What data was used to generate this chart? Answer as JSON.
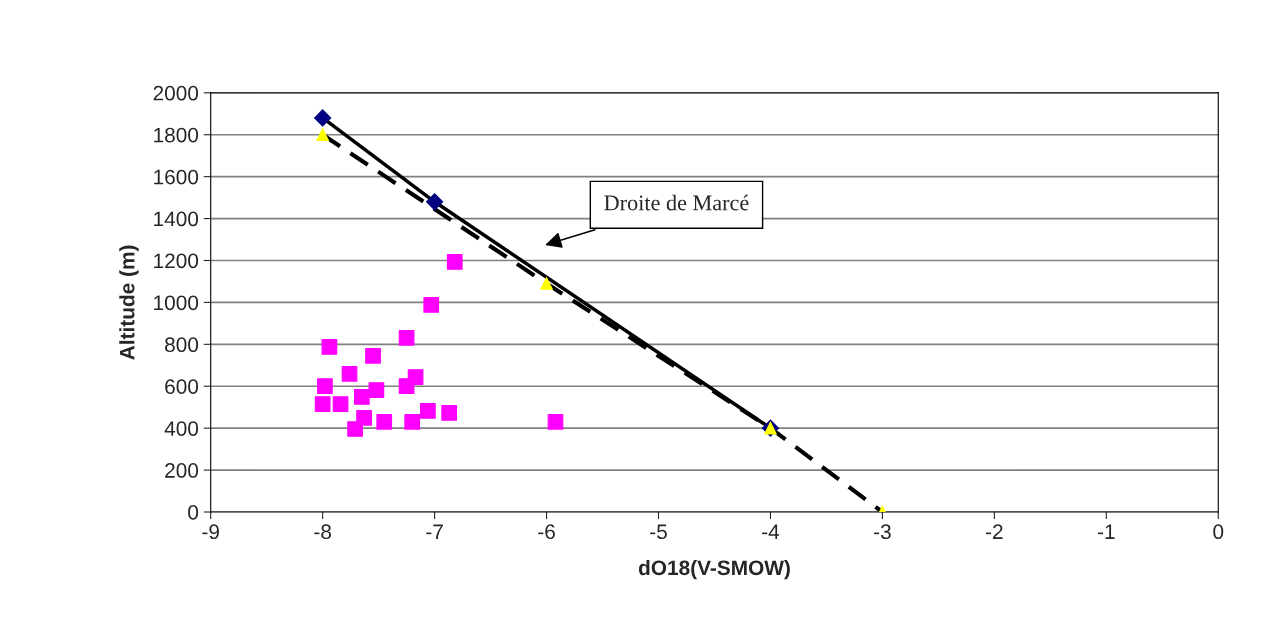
{
  "chart_data": {
    "type": "scatter",
    "xlabel": "dO18(V-SMOW)",
    "ylabel": "Altitude (m)",
    "xlim": [
      -9,
      0
    ],
    "xticks": [
      -9,
      -8,
      -7,
      -6,
      -5,
      -4,
      -3,
      -2,
      -1,
      0
    ],
    "ylim": [
      0,
      2000
    ],
    "yticks": [
      0,
      200,
      400,
      600,
      800,
      1000,
      1200,
      1400,
      1600,
      1800,
      2000
    ],
    "grid": "y",
    "legend": false,
    "series": [
      {
        "marker": "square",
        "color": "#ff00ff",
        "x": [
          -8.0,
          -7.98,
          -7.94,
          -7.84,
          -7.76,
          -7.65,
          -7.63,
          -7.55,
          -7.52,
          -7.45,
          -7.71,
          -7.25,
          -7.25,
          -7.17,
          -7.2,
          -7.06,
          -7.03,
          -6.87,
          -6.82,
          -5.92
        ],
        "values": [
          515,
          601,
          788,
          515,
          659,
          549,
          449,
          745,
          582,
          430,
          396,
          831,
          601,
          644,
          430,
          482,
          988,
          473,
          1193,
          430
        ]
      },
      {
        "type": "line",
        "marker": "diamond",
        "line_style": "solid",
        "color": "#000080",
        "x": [
          -8,
          -7,
          -4
        ],
        "values": [
          1880,
          1480,
          400
        ]
      },
      {
        "type": "line",
        "marker": "triangle",
        "line_style": "dashed",
        "color": "#ffff00",
        "x": [
          -8,
          -6,
          -4,
          -3
        ],
        "values": [
          1800,
          1090,
          400,
          0
        ]
      }
    ],
    "annotations": [
      "Droite de Marcé"
    ]
  }
}
